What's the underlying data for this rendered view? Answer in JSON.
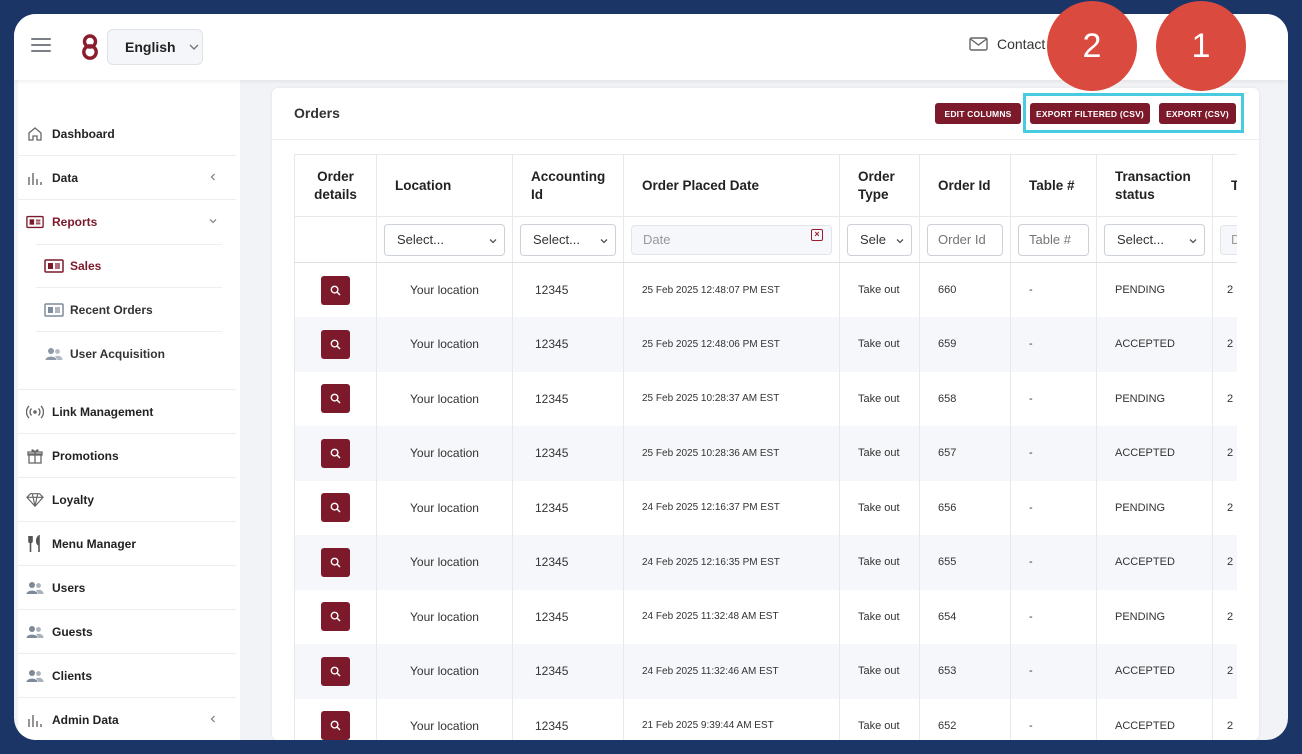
{
  "header": {
    "language": "English",
    "contact_label": "Contact"
  },
  "sidebar": {
    "items": [
      {
        "label": "Dashboard",
        "icon": "home-icon"
      },
      {
        "label": "Data",
        "icon": "bar-chart-icon"
      },
      {
        "label": "Reports",
        "icon": "report-icon"
      },
      {
        "label": "Link Management",
        "icon": "broadcast-icon"
      },
      {
        "label": "Promotions",
        "icon": "gift-icon"
      },
      {
        "label": "Loyalty",
        "icon": "diamond-icon"
      },
      {
        "label": "Menu Manager",
        "icon": "utensils-icon"
      },
      {
        "label": "Users",
        "icon": "users-icon"
      },
      {
        "label": "Guests",
        "icon": "users-icon"
      },
      {
        "label": "Clients",
        "icon": "users-icon"
      },
      {
        "label": "Admin Data",
        "icon": "bar-chart-icon"
      }
    ],
    "subitems": [
      {
        "label": "Sales",
        "icon": "report-icon"
      },
      {
        "label": "Recent Orders",
        "icon": "report-icon"
      },
      {
        "label": "User Acquisition",
        "icon": "users-icon"
      }
    ]
  },
  "orders": {
    "title": "Orders",
    "buttons": {
      "edit_columns": "EDIT COLUMNS",
      "export_filtered": "EXPORT FILTERED (CSV)",
      "export": "EXPORT (CSV)"
    },
    "columns": [
      "Order details",
      "Location",
      "Accounting Id",
      "Order Placed Date",
      "Order Type",
      "Order Id",
      "Table #",
      "Transaction status",
      "T"
    ],
    "filters": {
      "location": "Select...",
      "accounting_id": "Select...",
      "date_placeholder": "Date",
      "order_type": "Sele",
      "order_id_placeholder": "Order Id",
      "table_placeholder": "Table #",
      "transaction_status": "Select...",
      "last_placeholder": "D"
    },
    "rows": [
      {
        "location": "Your location",
        "accounting_id": "12345",
        "date": "25 Feb 2025 12:48:07 PM EST",
        "type": "Take out",
        "order_id": "660",
        "table": "-",
        "status": "PENDING",
        "t": "2"
      },
      {
        "location": "Your location",
        "accounting_id": "12345",
        "date": "25 Feb 2025 12:48:06 PM EST",
        "type": "Take out",
        "order_id": "659",
        "table": "-",
        "status": "ACCEPTED",
        "t": "2"
      },
      {
        "location": "Your location",
        "accounting_id": "12345",
        "date": "25 Feb 2025 10:28:37 AM EST",
        "type": "Take out",
        "order_id": "658",
        "table": "-",
        "status": "PENDING",
        "t": "2"
      },
      {
        "location": "Your location",
        "accounting_id": "12345",
        "date": "25 Feb 2025 10:28:36 AM EST",
        "type": "Take out",
        "order_id": "657",
        "table": "-",
        "status": "ACCEPTED",
        "t": "2"
      },
      {
        "location": "Your location",
        "accounting_id": "12345",
        "date": "24 Feb 2025 12:16:37 PM EST",
        "type": "Take out",
        "order_id": "656",
        "table": "-",
        "status": "PENDING",
        "t": "2"
      },
      {
        "location": "Your location",
        "accounting_id": "12345",
        "date": "24 Feb 2025 12:16:35 PM EST",
        "type": "Take out",
        "order_id": "655",
        "table": "-",
        "status": "ACCEPTED",
        "t": "2"
      },
      {
        "location": "Your location",
        "accounting_id": "12345",
        "date": "24 Feb 2025 11:32:48 AM EST",
        "type": "Take out",
        "order_id": "654",
        "table": "-",
        "status": "PENDING",
        "t": "2"
      },
      {
        "location": "Your location",
        "accounting_id": "12345",
        "date": "24 Feb 2025 11:32:46 AM EST",
        "type": "Take out",
        "order_id": "653",
        "table": "-",
        "status": "ACCEPTED",
        "t": "2"
      },
      {
        "location": "Your location",
        "accounting_id": "12345",
        "date": "21 Feb 2025 9:39:44 AM EST",
        "type": "Take out",
        "order_id": "652",
        "table": "-",
        "status": "ACCEPTED",
        "t": "2"
      }
    ]
  },
  "annotations": {
    "badge_1": "1",
    "badge_2": "2",
    "highlight_color": "#46cbe0",
    "badge_color": "#db4a3e"
  },
  "colors": {
    "brand": "#7c1a2b",
    "frame": "#1b3566"
  }
}
